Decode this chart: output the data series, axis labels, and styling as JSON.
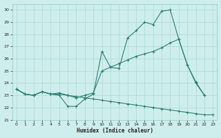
{
  "xlabel": "Humidex (Indice chaleur)",
  "background_color": "#ceeeed",
  "grid_color": "#a8d8d6",
  "line_color": "#2e7d72",
  "xlim": [
    -0.5,
    23.5
  ],
  "ylim": [
    21.0,
    30.5
  ],
  "xticks": [
    0,
    1,
    2,
    3,
    4,
    5,
    6,
    7,
    8,
    9,
    10,
    11,
    12,
    13,
    14,
    15,
    16,
    17,
    18,
    19,
    20,
    21,
    22,
    23
  ],
  "yticks": [
    21,
    22,
    23,
    24,
    25,
    26,
    27,
    28,
    29,
    30
  ],
  "series1_x": [
    0,
    1,
    2,
    3,
    4,
    5,
    6,
    7,
    8,
    9,
    10,
    11,
    12,
    13,
    14,
    15,
    16,
    17,
    18,
    19,
    20,
    21,
    22
  ],
  "series1_y": [
    23.5,
    23.1,
    23.0,
    23.3,
    23.1,
    23.0,
    22.1,
    22.1,
    22.7,
    23.1,
    26.6,
    25.3,
    25.2,
    27.7,
    28.3,
    29.0,
    28.8,
    29.9,
    30.0,
    27.6,
    25.5,
    24.0,
    23.0
  ],
  "series2_x": [
    0,
    1,
    2,
    3,
    4,
    5,
    6,
    7,
    8,
    9,
    10,
    11,
    12,
    13,
    14,
    15,
    16,
    17,
    18,
    19,
    20,
    21,
    22
  ],
  "series2_y": [
    23.5,
    23.1,
    23.0,
    23.3,
    23.1,
    23.2,
    23.0,
    22.8,
    23.0,
    23.2,
    25.0,
    25.3,
    25.6,
    25.9,
    26.2,
    26.4,
    26.6,
    26.9,
    27.3,
    27.6,
    25.5,
    24.1,
    23.0
  ],
  "series3_x": [
    0,
    1,
    2,
    3,
    4,
    5,
    6,
    7,
    8,
    9,
    10,
    11,
    12,
    13,
    14,
    15,
    16,
    17,
    18,
    19,
    20,
    21,
    22,
    23
  ],
  "series3_y": [
    23.5,
    23.1,
    23.0,
    23.3,
    23.1,
    23.1,
    23.0,
    22.9,
    22.8,
    22.7,
    22.6,
    22.5,
    22.4,
    22.3,
    22.2,
    22.1,
    22.0,
    21.9,
    21.8,
    21.7,
    21.6,
    21.5,
    21.4,
    21.4
  ]
}
